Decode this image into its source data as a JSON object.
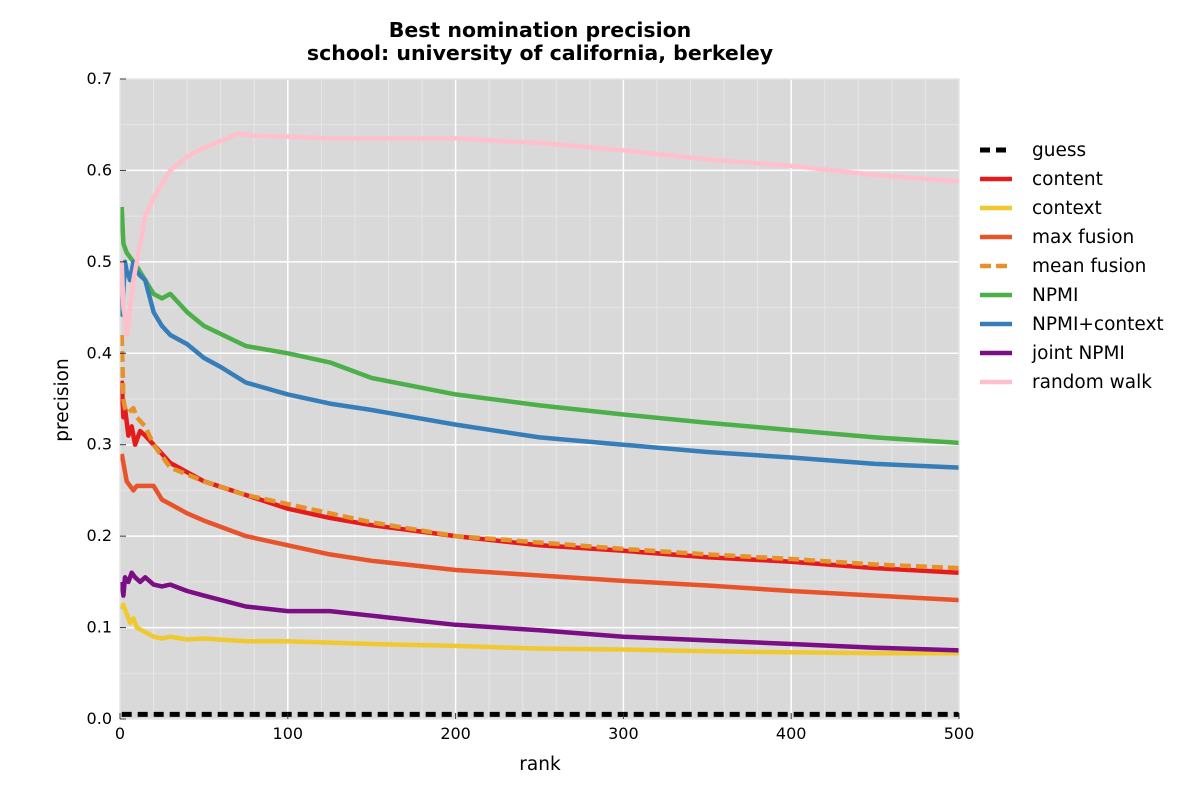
{
  "chart_data": {
    "type": "line",
    "title": "Best nomination precision",
    "subtitle": "school: university of california, berkeley",
    "xlabel": "rank",
    "ylabel": "precision",
    "xlim": [
      0,
      500
    ],
    "ylim": [
      0,
      0.7
    ],
    "xticks": [
      "0",
      "100",
      "200",
      "300",
      "400",
      "500"
    ],
    "yticks": [
      "0.0",
      "0.1",
      "0.2",
      "0.3",
      "0.4",
      "0.5",
      "0.6",
      "0.7"
    ],
    "grid": true,
    "legend_position": "right",
    "background": "#d9d9d9",
    "series": [
      {
        "name": "guess",
        "color": "#000000",
        "dashed": true,
        "x": [
          1,
          500
        ],
        "y": [
          0.005,
          0.005
        ]
      },
      {
        "name": "content",
        "color": "#e41a1c",
        "dashed": false,
        "x": [
          1,
          2,
          3,
          5,
          7,
          9,
          12,
          15,
          20,
          30,
          50,
          75,
          100,
          125,
          150,
          200,
          250,
          300,
          350,
          400,
          450,
          500
        ],
        "y": [
          0.37,
          0.33,
          0.34,
          0.31,
          0.32,
          0.3,
          0.315,
          0.31,
          0.3,
          0.28,
          0.26,
          0.245,
          0.23,
          0.22,
          0.212,
          0.2,
          0.19,
          0.184,
          0.177,
          0.172,
          0.165,
          0.16
        ]
      },
      {
        "name": "context",
        "color": "#f0c930",
        "dashed": false,
        "x": [
          1,
          2,
          4,
          6,
          8,
          10,
          15,
          20,
          25,
          30,
          40,
          50,
          75,
          100,
          150,
          200,
          250,
          300,
          350,
          400,
          450,
          500
        ],
        "y": [
          0.12,
          0.125,
          0.115,
          0.105,
          0.11,
          0.1,
          0.095,
          0.09,
          0.088,
          0.09,
          0.087,
          0.088,
          0.085,
          0.085,
          0.082,
          0.08,
          0.077,
          0.076,
          0.074,
          0.073,
          0.072,
          0.072
        ]
      },
      {
        "name": "max fusion",
        "color": "#e8542a",
        "dashed": false,
        "x": [
          1,
          2,
          4,
          6,
          8,
          10,
          15,
          20,
          25,
          30,
          40,
          50,
          75,
          100,
          125,
          150,
          200,
          250,
          300,
          350,
          400,
          450,
          500
        ],
        "y": [
          0.29,
          0.28,
          0.26,
          0.255,
          0.25,
          0.255,
          0.255,
          0.255,
          0.24,
          0.235,
          0.225,
          0.217,
          0.2,
          0.19,
          0.18,
          0.173,
          0.163,
          0.157,
          0.151,
          0.146,
          0.14,
          0.135,
          0.13
        ]
      },
      {
        "name": "mean fusion",
        "color": "#e6922a",
        "dashed": true,
        "x": [
          1,
          2,
          3,
          5,
          8,
          10,
          15,
          20,
          30,
          50,
          75,
          100,
          125,
          150,
          200,
          250,
          300,
          350,
          400,
          450,
          500
        ],
        "y": [
          0.42,
          0.35,
          0.34,
          0.335,
          0.34,
          0.33,
          0.32,
          0.3,
          0.275,
          0.26,
          0.245,
          0.235,
          0.225,
          0.215,
          0.2,
          0.193,
          0.186,
          0.18,
          0.175,
          0.169,
          0.165
        ]
      },
      {
        "name": "NPMI",
        "color": "#4daf4a",
        "dashed": false,
        "x": [
          1,
          2,
          4,
          6,
          8,
          10,
          15,
          20,
          25,
          30,
          40,
          50,
          75,
          100,
          125,
          150,
          200,
          250,
          300,
          350,
          400,
          450,
          500
        ],
        "y": [
          0.56,
          0.52,
          0.51,
          0.505,
          0.5,
          0.495,
          0.48,
          0.465,
          0.46,
          0.465,
          0.445,
          0.43,
          0.408,
          0.4,
          0.39,
          0.373,
          0.355,
          0.343,
          0.333,
          0.324,
          0.316,
          0.308,
          0.302
        ]
      },
      {
        "name": "NPMI+context",
        "color": "#377eb8",
        "dashed": false,
        "x": [
          1,
          2,
          3,
          4,
          6,
          8,
          10,
          12,
          15,
          20,
          25,
          30,
          40,
          50,
          60,
          75,
          100,
          125,
          150,
          200,
          250,
          300,
          350,
          400,
          450,
          500
        ],
        "y": [
          0.44,
          0.47,
          0.5,
          0.49,
          0.48,
          0.5,
          0.49,
          0.485,
          0.48,
          0.445,
          0.43,
          0.42,
          0.41,
          0.395,
          0.385,
          0.368,
          0.355,
          0.345,
          0.338,
          0.322,
          0.308,
          0.3,
          0.292,
          0.286,
          0.279,
          0.275
        ]
      },
      {
        "name": "joint NPMI",
        "color": "#7b0d85",
        "dashed": false,
        "x": [
          1,
          2,
          3,
          5,
          7,
          9,
          12,
          15,
          20,
          25,
          30,
          40,
          50,
          75,
          100,
          125,
          150,
          200,
          250,
          300,
          350,
          400,
          450,
          500
        ],
        "y": [
          0.15,
          0.135,
          0.155,
          0.15,
          0.16,
          0.155,
          0.15,
          0.155,
          0.147,
          0.145,
          0.147,
          0.14,
          0.135,
          0.123,
          0.118,
          0.118,
          0.113,
          0.103,
          0.097,
          0.09,
          0.086,
          0.082,
          0.078,
          0.075
        ]
      },
      {
        "name": "random walk",
        "color": "#ffc0cb",
        "dashed": false,
        "x": [
          1,
          2,
          3,
          4,
          5,
          6,
          8,
          10,
          12,
          15,
          20,
          25,
          30,
          40,
          50,
          60,
          70,
          80,
          100,
          125,
          150,
          200,
          250,
          300,
          350,
          400,
          450,
          500
        ],
        "y": [
          0.5,
          0.45,
          0.44,
          0.42,
          0.43,
          0.45,
          0.48,
          0.5,
          0.52,
          0.55,
          0.57,
          0.585,
          0.6,
          0.615,
          0.625,
          0.632,
          0.64,
          0.638,
          0.637,
          0.635,
          0.635,
          0.635,
          0.63,
          0.622,
          0.612,
          0.605,
          0.595,
          0.588
        ]
      }
    ]
  }
}
